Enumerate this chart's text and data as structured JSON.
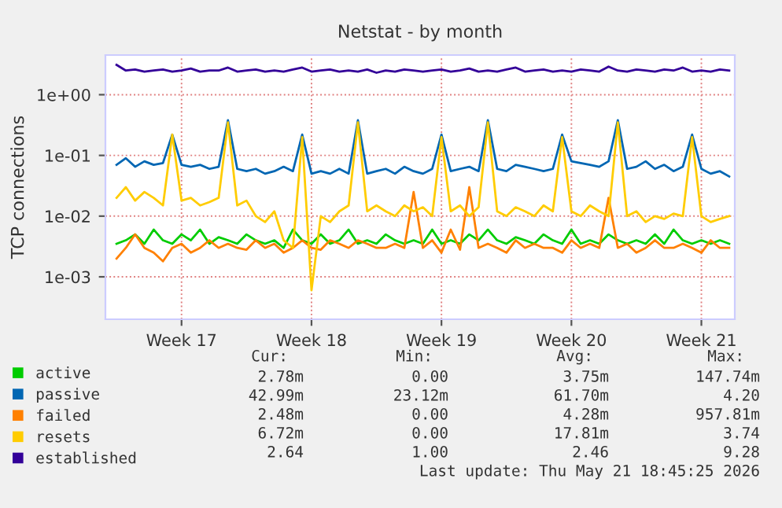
{
  "chart_data": {
    "type": "line",
    "title": "Netstat - by month",
    "ylabel": "TCP connections",
    "log": "y",
    "grid": true,
    "legend": "bottom",
    "marker": "none",
    "line_style": "solid",
    "ylim": [
      0.0002,
      4.5
    ],
    "yticks": [
      {
        "value": 0.001,
        "label": "1e-03"
      },
      {
        "value": 0.01,
        "label": "1e-02"
      },
      {
        "value": 0.1,
        "label": "1e-01"
      },
      {
        "value": 1,
        "label": "1e+00"
      }
    ],
    "categories": [
      null,
      null,
      null,
      null,
      null,
      null,
      null,
      "Week 17",
      null,
      null,
      null,
      null,
      null,
      null,
      null,
      null,
      null,
      null,
      null,
      null,
      null,
      "Week 18",
      null,
      null,
      null,
      null,
      null,
      null,
      null,
      null,
      null,
      null,
      null,
      null,
      null,
      "Week 19",
      null,
      null,
      null,
      null,
      null,
      null,
      null,
      null,
      null,
      null,
      null,
      null,
      null,
      "Week 20",
      null,
      null,
      null,
      null,
      null,
      null,
      null,
      null,
      null,
      null,
      null,
      null,
      null,
      "Week 21",
      null,
      null,
      null
    ],
    "series": [
      {
        "name": "active",
        "color": "#00cc00",
        "values": [
          0.0035,
          0.004,
          0.005,
          0.0035,
          0.006,
          0.004,
          0.0035,
          0.005,
          0.004,
          0.006,
          0.0035,
          0.0045,
          0.004,
          0.0035,
          0.005,
          0.004,
          0.0035,
          0.004,
          0.003,
          0.006,
          0.004,
          0.0035,
          0.005,
          0.0035,
          0.004,
          0.006,
          0.0035,
          0.004,
          0.0035,
          0.005,
          0.004,
          0.0035,
          0.004,
          0.0035,
          0.006,
          0.0035,
          0.004,
          0.0035,
          0.005,
          0.004,
          0.006,
          0.004,
          0.0035,
          0.0045,
          0.004,
          0.0035,
          0.005,
          0.004,
          0.0035,
          0.006,
          0.0035,
          0.004,
          0.0035,
          0.005,
          0.004,
          0.0035,
          0.004,
          0.0035,
          0.005,
          0.0035,
          0.006,
          0.004,
          0.0035,
          0.004,
          0.0035,
          0.004,
          0.0035
        ]
      },
      {
        "name": "passive",
        "color": "#0066b3",
        "values": [
          0.07,
          0.09,
          0.065,
          0.08,
          0.07,
          0.075,
          0.22,
          0.07,
          0.065,
          0.07,
          0.06,
          0.065,
          0.38,
          0.06,
          0.055,
          0.06,
          0.05,
          0.055,
          0.065,
          0.055,
          0.22,
          0.05,
          0.055,
          0.05,
          0.06,
          0.05,
          0.38,
          0.05,
          0.055,
          0.06,
          0.05,
          0.065,
          0.055,
          0.05,
          0.06,
          0.22,
          0.055,
          0.06,
          0.065,
          0.055,
          0.38,
          0.06,
          0.055,
          0.07,
          0.065,
          0.06,
          0.055,
          0.06,
          0.22,
          0.08,
          0.075,
          0.07,
          0.065,
          0.08,
          0.38,
          0.06,
          0.065,
          0.08,
          0.06,
          0.07,
          0.055,
          0.065,
          0.22,
          0.06,
          0.05,
          0.055,
          0.045
        ]
      },
      {
        "name": "failed",
        "color": "#ff8000",
        "values": [
          0.002,
          0.003,
          0.005,
          0.003,
          0.0025,
          0.0018,
          0.003,
          0.0035,
          0.0025,
          0.003,
          0.004,
          0.003,
          0.0035,
          0.003,
          0.0028,
          0.004,
          0.003,
          0.0035,
          0.0025,
          0.003,
          0.004,
          0.003,
          0.0028,
          0.004,
          0.0035,
          0.003,
          0.004,
          0.0035,
          0.003,
          0.003,
          0.0035,
          0.003,
          0.025,
          0.003,
          0.004,
          0.0025,
          0.006,
          0.0028,
          0.03,
          0.003,
          0.0035,
          0.003,
          0.0025,
          0.004,
          0.003,
          0.0035,
          0.003,
          0.003,
          0.0025,
          0.004,
          0.003,
          0.0035,
          0.003,
          0.02,
          0.003,
          0.0035,
          0.0025,
          0.003,
          0.004,
          0.003,
          0.003,
          0.0035,
          0.003,
          0.0025,
          0.004,
          0.003,
          0.003
        ]
      },
      {
        "name": "resets",
        "color": "#ffcc00",
        "values": [
          0.02,
          0.03,
          0.018,
          0.025,
          0.02,
          0.015,
          0.22,
          0.018,
          0.02,
          0.015,
          0.017,
          0.02,
          0.35,
          0.015,
          0.018,
          0.01,
          0.008,
          0.012,
          0.004,
          0.003,
          0.2,
          0.0006,
          0.01,
          0.008,
          0.012,
          0.015,
          0.35,
          0.012,
          0.015,
          0.012,
          0.01,
          0.015,
          0.012,
          0.014,
          0.01,
          0.2,
          0.012,
          0.015,
          0.01,
          0.014,
          0.35,
          0.012,
          0.01,
          0.014,
          0.012,
          0.01,
          0.015,
          0.012,
          0.2,
          0.012,
          0.01,
          0.015,
          0.012,
          0.01,
          0.35,
          0.01,
          0.012,
          0.008,
          0.01,
          0.009,
          0.011,
          0.01,
          0.2,
          0.01,
          0.008,
          0.009,
          0.01
        ]
      },
      {
        "name": "established",
        "color": "#330099",
        "values": [
          3.1,
          2.5,
          2.6,
          2.4,
          2.5,
          2.6,
          2.4,
          2.5,
          2.7,
          2.4,
          2.5,
          2.5,
          2.8,
          2.4,
          2.5,
          2.6,
          2.4,
          2.5,
          2.4,
          2.6,
          2.8,
          2.4,
          2.5,
          2.6,
          2.4,
          2.5,
          2.4,
          2.6,
          2.3,
          2.5,
          2.4,
          2.6,
          2.5,
          2.4,
          2.5,
          2.6,
          2.4,
          2.5,
          2.7,
          2.4,
          2.5,
          2.4,
          2.6,
          2.8,
          2.4,
          2.5,
          2.6,
          2.4,
          2.5,
          2.4,
          2.6,
          2.5,
          2.4,
          2.9,
          2.5,
          2.4,
          2.6,
          2.5,
          2.4,
          2.6,
          2.5,
          2.8,
          2.4,
          2.5,
          2.4,
          2.6,
          2.5
        ]
      }
    ],
    "annotations": [
      "Cur:",
      "Min:",
      "Avg:",
      "Max:",
      "2.78m",
      "0.00",
      "3.75m",
      "147.74m",
      "42.99m",
      "23.12m",
      "61.70m",
      "4.20",
      "2.48m",
      "0.00",
      "4.28m",
      "957.81m",
      "6.72m",
      "0.00",
      "17.81m",
      "3.74",
      "2.64",
      "1.00",
      "2.46",
      "9.28",
      "Last update: Thu May 21 18:45:25 2026"
    ]
  }
}
